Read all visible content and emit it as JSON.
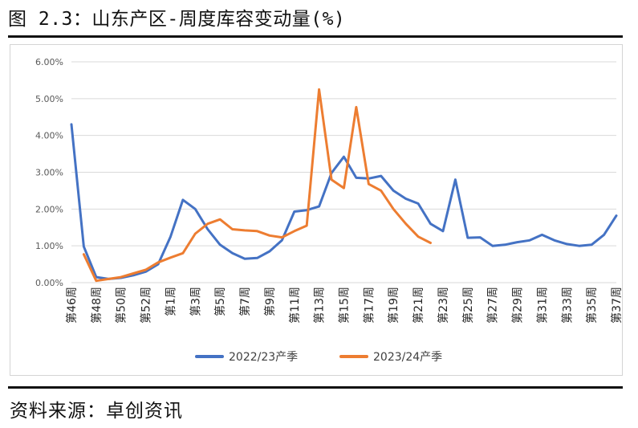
{
  "figure": {
    "title": "图 2.3：山东产区-周度库容变动量(%)",
    "source": "资料来源：卓创资讯"
  },
  "colors": {
    "series1": "#4472c4",
    "series2": "#ed7d31",
    "grid": "#d9d9d9",
    "axis_text": "#595959"
  },
  "chart_data": {
    "type": "line",
    "title": "",
    "xlabel": "",
    "ylabel": "",
    "ylim": [
      0,
      0.06
    ],
    "yticks": [
      "0.00%",
      "1.00%",
      "2.00%",
      "3.00%",
      "4.00%",
      "5.00%",
      "6.00%"
    ],
    "grid": true,
    "legend": "bottom",
    "categories": [
      "第46周",
      "第47周",
      "第48周",
      "第49周",
      "第50周",
      "第51周",
      "第52周",
      "第53周",
      "第1周",
      "第2周",
      "第3周",
      "第4周",
      "第5周",
      "第6周",
      "第7周",
      "第8周",
      "第9周",
      "第10周",
      "第11周",
      "第12周",
      "第13周",
      "第14周",
      "第15周",
      "第16周",
      "第17周",
      "第18周",
      "第19周",
      "第20周",
      "第21周",
      "第22周",
      "第23周",
      "第24周",
      "第25周",
      "第26周",
      "第27周",
      "第28周",
      "第29周",
      "第30周",
      "第31周",
      "第32周",
      "第33周",
      "第34周",
      "第35周",
      "第36周",
      "第37周"
    ],
    "category_labels_shown": [
      "第46周",
      "第48周",
      "第50周",
      "第52周",
      "第1周",
      "第3周",
      "第5周",
      "第7周",
      "第9周",
      "第11周",
      "第13周",
      "第15周",
      "第17周",
      "第19周",
      "第21周",
      "第23周",
      "第25周",
      "第27周",
      "第29周",
      "第31周",
      "第33周",
      "第35周",
      "第37周"
    ],
    "series": [
      {
        "name": "2022/23产季",
        "values": [
          0.043,
          0.0098,
          0.0015,
          0.001,
          0.0013,
          0.002,
          0.003,
          0.005,
          0.0125,
          0.0225,
          0.02,
          0.0145,
          0.0103,
          0.008,
          0.0065,
          0.0067,
          0.0085,
          0.0115,
          0.0193,
          0.0197,
          0.0207,
          0.0298,
          0.0342,
          0.0285,
          0.0283,
          0.029,
          0.025,
          0.0228,
          0.0215,
          0.016,
          0.014,
          0.028,
          0.0122,
          0.0123,
          0.01,
          0.0103,
          0.011,
          0.0115,
          0.013,
          0.0115,
          0.0105,
          0.01,
          0.0103,
          0.013,
          0.0182
        ]
      },
      {
        "name": "2023/24产季",
        "values": [
          null,
          0.0077,
          0.0005,
          0.001,
          0.0015,
          0.0025,
          0.0035,
          0.0055,
          0.0068,
          0.008,
          0.0133,
          0.016,
          0.0172,
          0.0145,
          0.0142,
          0.014,
          0.0128,
          0.0123,
          0.014,
          0.0155,
          0.0525,
          0.028,
          0.0257,
          0.0477,
          0.0268,
          0.025,
          0.02,
          0.016,
          0.0125,
          0.0108,
          null,
          null,
          null,
          null,
          null,
          null,
          null,
          null,
          null,
          null,
          null,
          null,
          null,
          null,
          null
        ]
      }
    ]
  }
}
